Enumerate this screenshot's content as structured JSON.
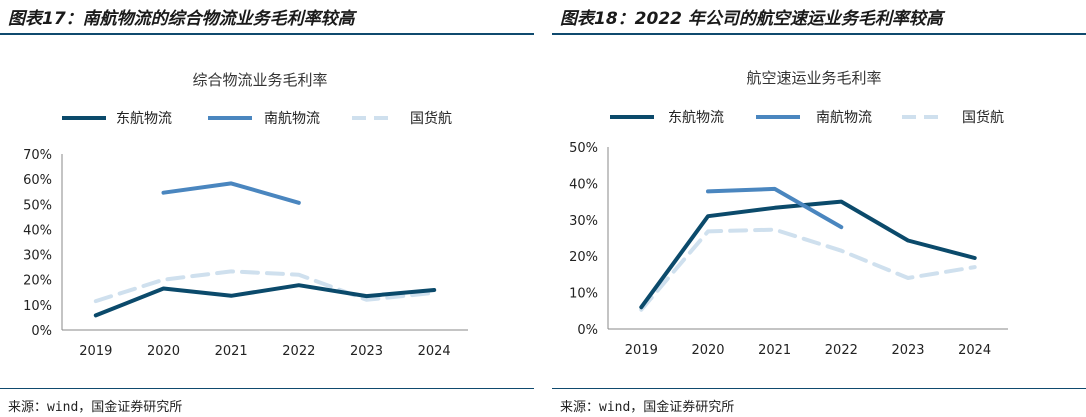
{
  "colors": {
    "east": "#0b4a6b",
    "south": "#4a86bf",
    "cargo": "#cfe0ee",
    "rule": "#0f4a6e"
  },
  "panels": [
    {
      "figure_title": "图表17：南航物流的综合物流业务毛利率较高",
      "source": "来源：wind，国金证券研究所"
    },
    {
      "figure_title": "图表18：2022 年公司的航空速运业务毛利率较高",
      "source": "来源：wind，国金证券研究所"
    }
  ],
  "chart_data": [
    {
      "type": "line",
      "title": "综合物流业务毛利率",
      "categories": [
        "2019",
        "2020",
        "2021",
        "2022",
        "2023",
        "2024"
      ],
      "ylim": [
        0,
        70
      ],
      "yticks": [
        "0%",
        "10%",
        "20%",
        "30%",
        "40%",
        "50%",
        "60%",
        "70%"
      ],
      "legend_position": "top",
      "grid": false,
      "series": [
        {
          "name": "东航物流",
          "values": [
            5.8,
            16.5,
            13.6,
            17.8,
            13.5,
            15.9
          ]
        },
        {
          "name": "南航物流",
          "values": [
            null,
            54.6,
            58.3,
            50.6,
            null,
            null
          ]
        },
        {
          "name": "国货航",
          "values": [
            11.5,
            20.0,
            23.3,
            22.0,
            12.0,
            14.8
          ]
        }
      ]
    },
    {
      "type": "line",
      "title": "航空速运业务毛利率",
      "categories": [
        "2019",
        "2020",
        "2021",
        "2022",
        "2023",
        "2024"
      ],
      "ylim": [
        0,
        50
      ],
      "yticks": [
        "0%",
        "10%",
        "20%",
        "30%",
        "40%",
        "50%"
      ],
      "legend_position": "top",
      "grid": false,
      "series": [
        {
          "name": "东航物流",
          "values": [
            6.0,
            31.0,
            33.3,
            35.0,
            24.3,
            19.5
          ]
        },
        {
          "name": "南航物流",
          "values": [
            null,
            37.8,
            38.5,
            28.0,
            null,
            null
          ]
        },
        {
          "name": "国货航",
          "values": [
            5.3,
            26.8,
            27.3,
            21.5,
            14.0,
            17.0
          ]
        }
      ]
    }
  ]
}
